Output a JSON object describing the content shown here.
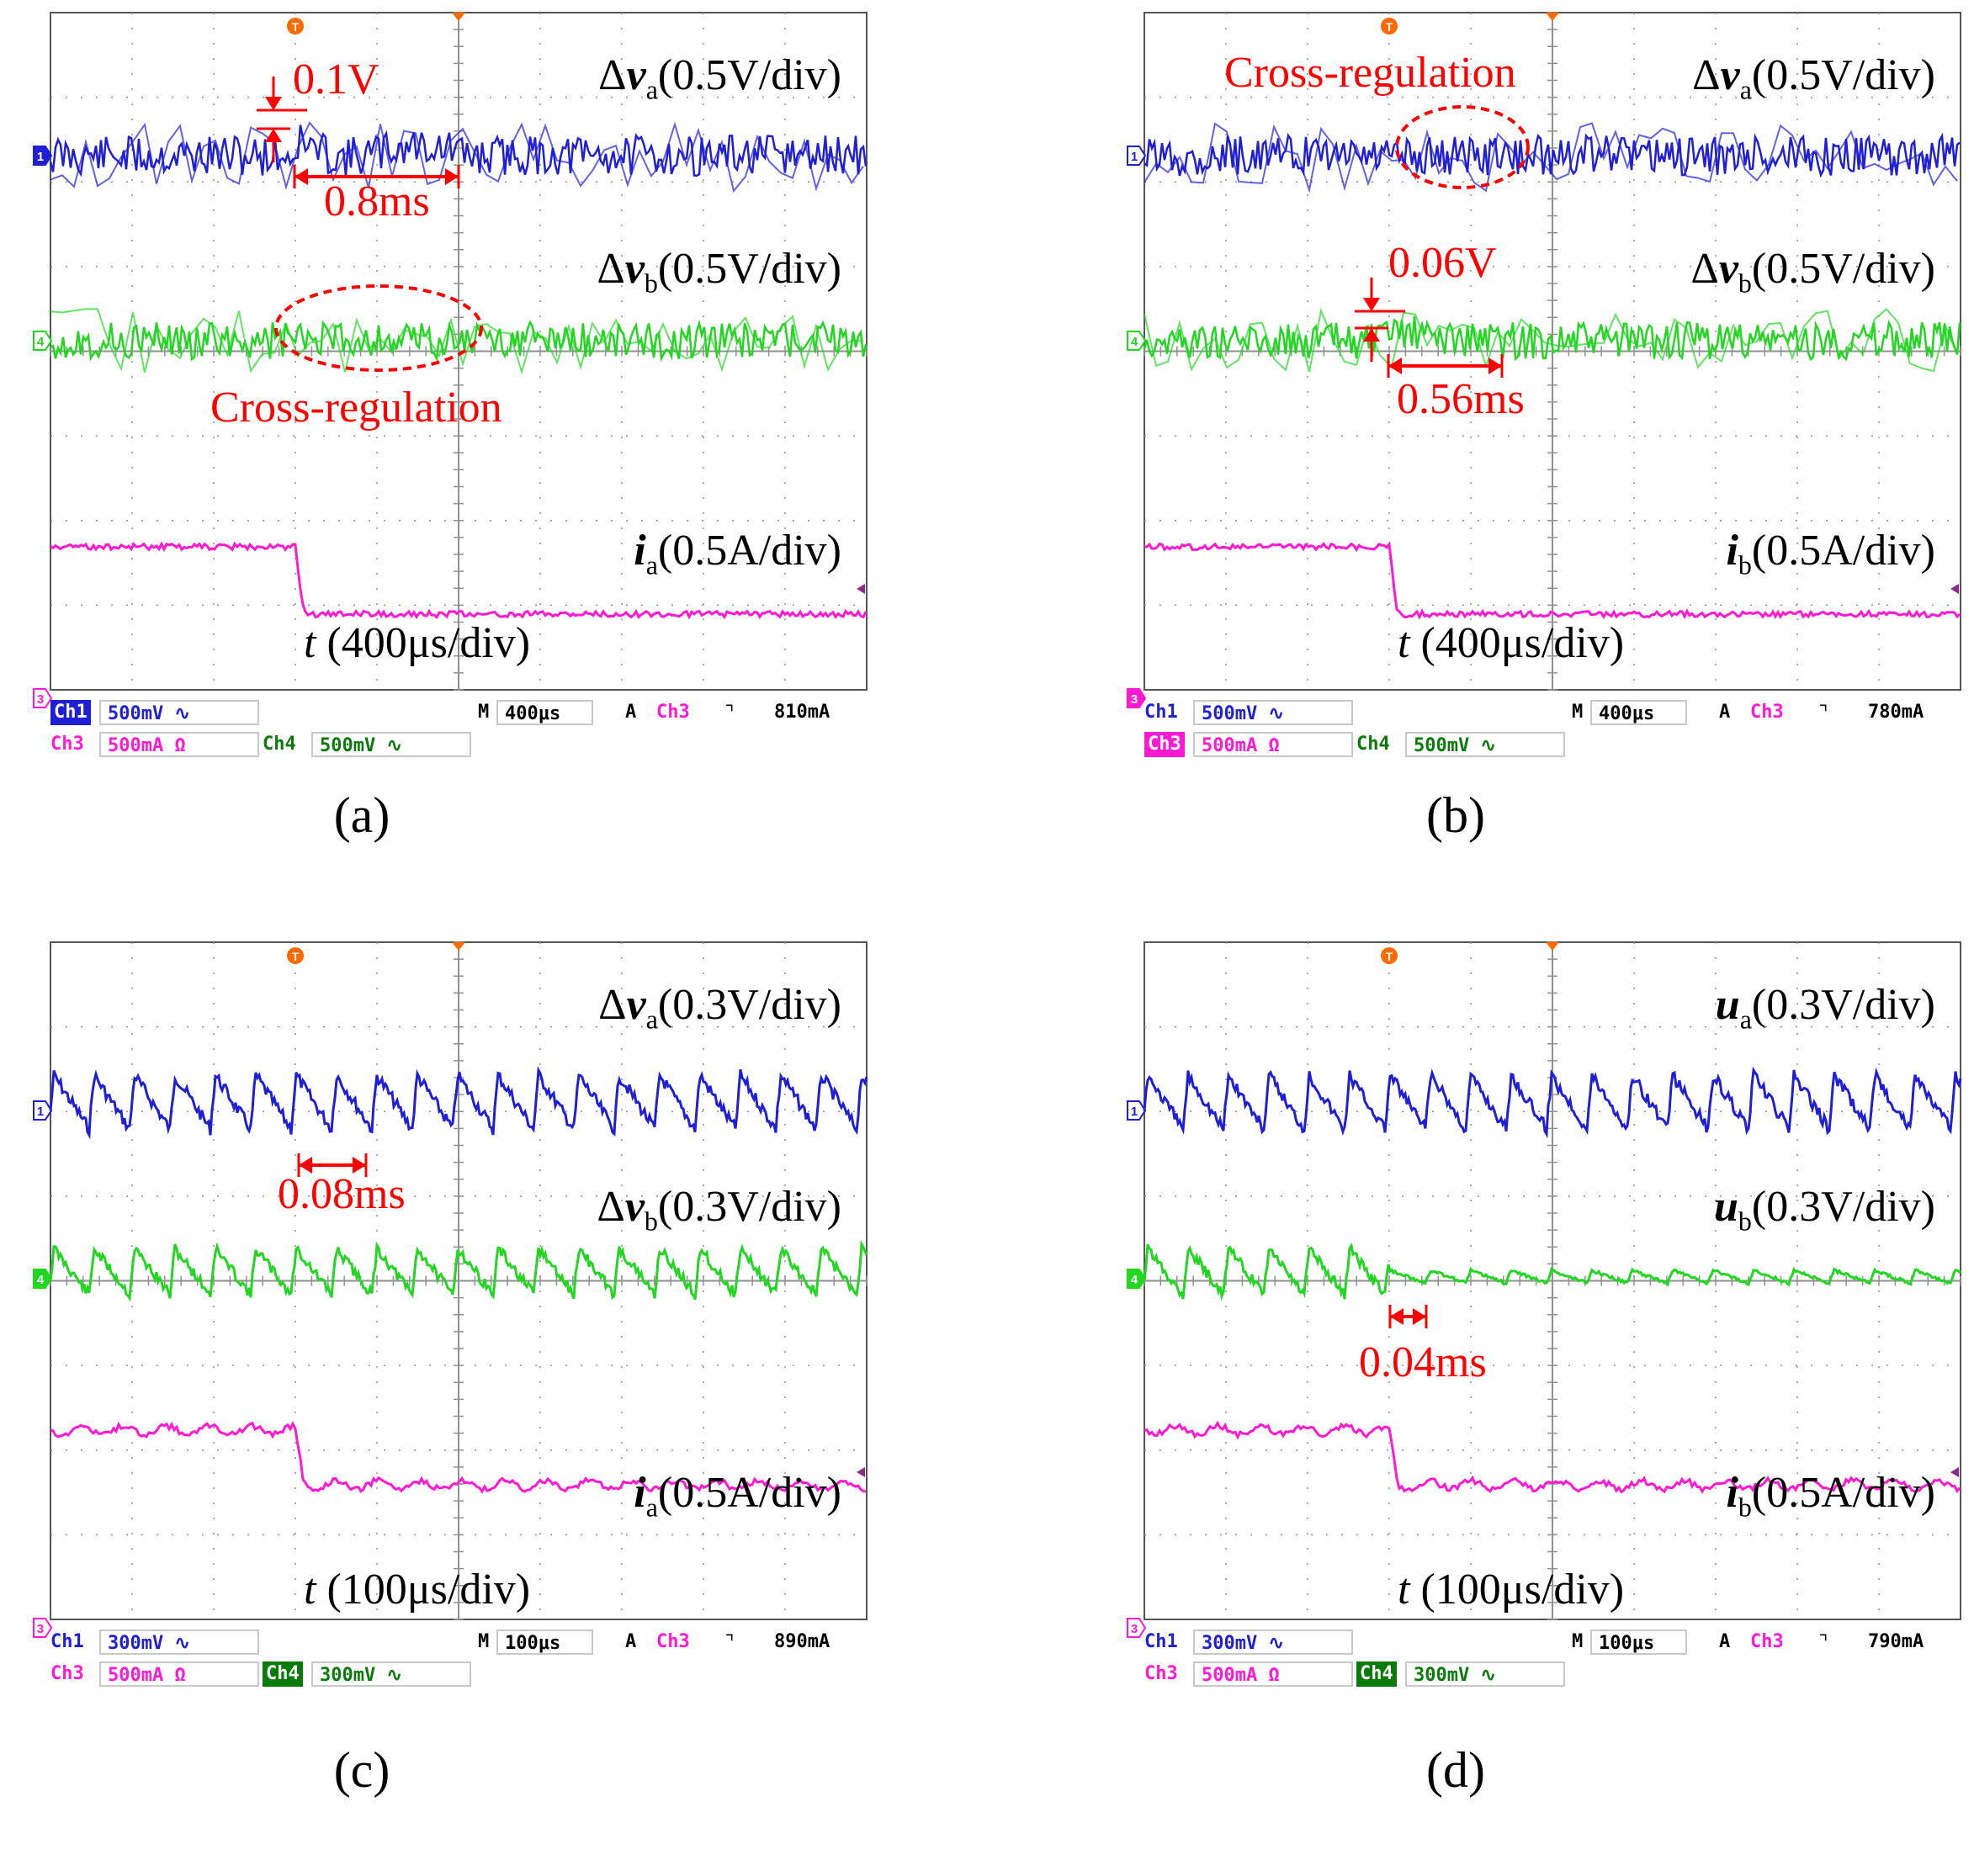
{
  "colors": {
    "ch1": "#1f1fd6",
    "ch4": "#22d622",
    "ch3": "#ff19d2",
    "annotation": "#ff0000",
    "grid": "#909090",
    "frame": "#555555"
  },
  "panels": [
    {
      "id": "a",
      "caption": "(a)",
      "labels": {
        "trace1": [
          "Δ",
          "v",
          "a",
          "(0.5V/div)"
        ],
        "trace2": [
          "Δ",
          "v",
          "b",
          "(0.5V/div)"
        ],
        "trace3": [
          "",
          "i",
          "a",
          "(0.5A/div)"
        ],
        "time": [
          "t",
          " (400μs/div)"
        ]
      },
      "annotations": {
        "amp": "0.1V",
        "dur": "0.8ms",
        "cross": "Cross-regulation"
      },
      "status": {
        "ch1_name": "Ch1",
        "ch1_scale": "500mV ∿",
        "timebase_prefix": "M",
        "timebase": "400μs",
        "trigger_mode": "A",
        "trigger_ch": "Ch3",
        "trigger_edge": "⌝",
        "trigger_level": "810mA",
        "ch3_name": "Ch3",
        "ch3_scale": "500mA Ω",
        "ch4_name": "Ch4",
        "ch4_scale": "500mV ∿",
        "highlight": "ch1"
      },
      "chart_data": {
        "type": "line",
        "x_unit": "μs",
        "time_per_div": 400,
        "x_divisions": 10,
        "y_divisions": 8,
        "series": [
          {
            "name": "Δva",
            "channel": 1,
            "scale": "0.5V/div",
            "event": "overshoot 0.1V, recovery 0.8ms"
          },
          {
            "name": "Δvb",
            "channel": 4,
            "scale": "0.5V/div",
            "event": "Cross-regulation"
          },
          {
            "name": "ia",
            "channel": 3,
            "scale": "0.5A/div",
            "event": "step down 1 div at trigger"
          }
        ]
      }
    },
    {
      "id": "b",
      "caption": "(b)",
      "labels": {
        "trace1": [
          "Δ",
          "v",
          "a",
          "(0.5V/div)"
        ],
        "trace2": [
          "Δ",
          "v",
          "b",
          "(0.5V/div)"
        ],
        "trace3": [
          "",
          "i",
          "b",
          "(0.5A/div)"
        ],
        "time": [
          "t",
          " (400μs/div)"
        ]
      },
      "annotations": {
        "amp": "0.06V",
        "dur": "0.56ms",
        "cross": "Cross-regulation"
      },
      "status": {
        "ch1_name": "Ch1",
        "ch1_scale": "500mV ∿",
        "timebase_prefix": "M",
        "timebase": "400μs",
        "trigger_mode": "A",
        "trigger_ch": "Ch3",
        "trigger_edge": "⌝",
        "trigger_level": "780mA",
        "ch3_name": "Ch3",
        "ch3_scale": "500mA Ω",
        "ch4_name": "Ch4",
        "ch4_scale": "500mV ∿",
        "highlight": "ch3"
      },
      "chart_data": {
        "type": "line",
        "x_unit": "μs",
        "time_per_div": 400,
        "x_divisions": 10,
        "y_divisions": 8,
        "series": [
          {
            "name": "Δva",
            "channel": 1,
            "scale": "0.5V/div",
            "event": "Cross-regulation"
          },
          {
            "name": "Δvb",
            "channel": 4,
            "scale": "0.5V/div",
            "event": "overshoot 0.06V, recovery 0.56ms"
          },
          {
            "name": "ib",
            "channel": 3,
            "scale": "0.5A/div",
            "event": "step down 1 div at trigger"
          }
        ]
      }
    },
    {
      "id": "c",
      "caption": "(c)",
      "labels": {
        "trace1": [
          "Δ",
          "v",
          "a",
          "(0.3V/div)"
        ],
        "trace2": [
          "Δ",
          "v",
          "b",
          "(0.3V/div)"
        ],
        "trace3": [
          "",
          "i",
          "a",
          "(0.5A/div)"
        ],
        "time": [
          "t",
          " (100μs/div)"
        ]
      },
      "annotations": {
        "dur": "0.08ms"
      },
      "status": {
        "ch1_name": "Ch1",
        "ch1_scale": "300mV ∿",
        "timebase_prefix": "M",
        "timebase": "100μs",
        "trigger_mode": "A",
        "trigger_ch": "Ch3",
        "trigger_edge": "⌝",
        "trigger_level": "890mA",
        "ch3_name": "Ch3",
        "ch3_scale": "500mA Ω",
        "ch4_name": "Ch4",
        "ch4_scale": "300mV ∿",
        "highlight": "ch4"
      },
      "chart_data": {
        "type": "line",
        "x_unit": "μs",
        "time_per_div": 100,
        "x_divisions": 10,
        "y_divisions": 8,
        "series": [
          {
            "name": "Δva",
            "channel": 1,
            "scale": "0.3V/div",
            "event": "settling 0.08ms"
          },
          {
            "name": "Δvb",
            "channel": 4,
            "scale": "0.3V/div"
          },
          {
            "name": "ia",
            "channel": 3,
            "scale": "0.5A/div",
            "event": "step down 1 div at trigger"
          }
        ]
      }
    },
    {
      "id": "d",
      "caption": "(d)",
      "labels": {
        "trace1": [
          "",
          "u",
          "a",
          "(0.3V/div)"
        ],
        "trace2": [
          "",
          "u",
          "b",
          "(0.3V/div)"
        ],
        "trace3": [
          "",
          "i",
          "b",
          "(0.5A/div)"
        ],
        "time": [
          "t",
          " (100μs/div)"
        ]
      },
      "annotations": {
        "dur": "0.04ms"
      },
      "status": {
        "ch1_name": "Ch1",
        "ch1_scale": "300mV ∿",
        "timebase_prefix": "M",
        "timebase": "100μs",
        "trigger_mode": "A",
        "trigger_ch": "Ch3",
        "trigger_edge": "⌝",
        "trigger_level": "790mA",
        "ch3_name": "Ch3",
        "ch3_scale": "500mA Ω",
        "ch4_name": "Ch4",
        "ch4_scale": "300mV ∿",
        "highlight": "ch4"
      },
      "chart_data": {
        "type": "line",
        "x_unit": "μs",
        "time_per_div": 100,
        "x_divisions": 10,
        "y_divisions": 8,
        "series": [
          {
            "name": "ua",
            "channel": 1,
            "scale": "0.3V/div"
          },
          {
            "name": "ub",
            "channel": 4,
            "scale": "0.3V/div",
            "event": "settling 0.04ms"
          },
          {
            "name": "ib",
            "channel": 3,
            "scale": "0.5A/div",
            "event": "step down 1 div at trigger"
          }
        ]
      }
    }
  ]
}
